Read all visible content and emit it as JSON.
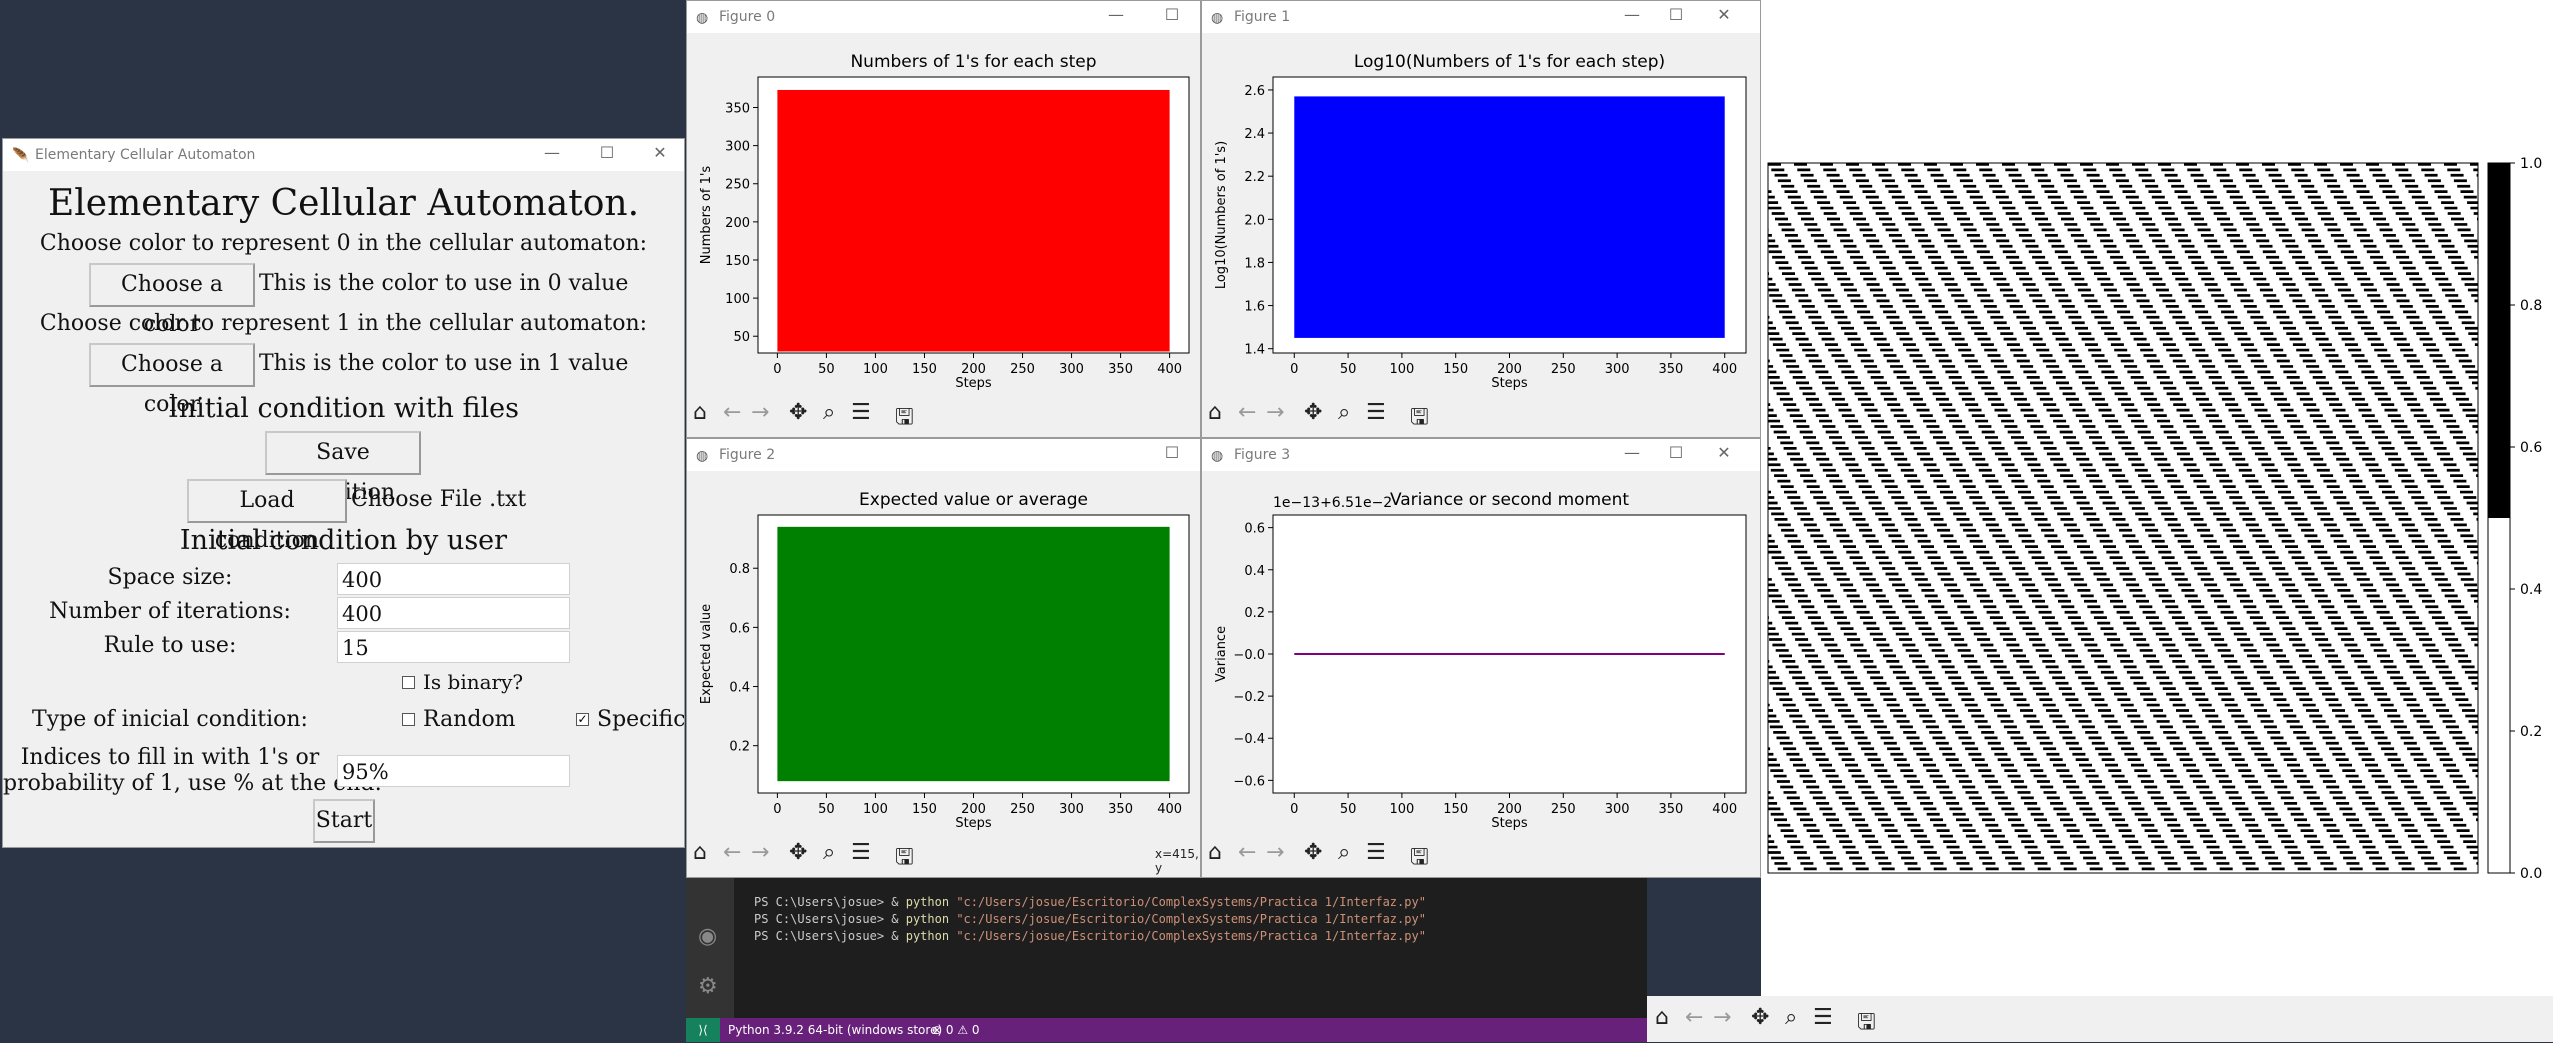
{
  "main_app": {
    "window_title": "Elementary Cellular Automaton",
    "heading": "Elementary Cellular Automaton.",
    "color0_prompt": "Choose color to represent 0 in the cellular automaton:",
    "color0_button": "Choose a color",
    "color0_label": "This is the color to use in 0 value",
    "color1_prompt": "Choose color to represent 1 in the cellular automaton:",
    "color1_button": "Choose a color",
    "color1_label": "This is the color to use in 1 value",
    "files_heading": "Initial condition with files",
    "save_button": "Save condition",
    "load_button": "Load condition",
    "choose_file_label": "Choose File .txt",
    "user_heading": "Initial condition by user",
    "space_size_label": "Space size:",
    "space_size_value": "400",
    "iterations_label": "Number of iterations:",
    "iterations_value": "400",
    "rule_label": "Rule to use:",
    "rule_value": "15",
    "is_binary_label": "Is binary?",
    "is_binary_checked": false,
    "type_label": "Type of inicial condition:",
    "random_label": "Random",
    "random_checked": false,
    "specific_label": "Specific",
    "specific_checked": true,
    "indices_label_1": "Indices to fill in with 1's or",
    "indices_label_2": "probability of 1, use % at the end:",
    "indices_value": "95%",
    "start_button": "Start"
  },
  "figures": [
    {
      "window_title": "Figure 0",
      "title": "Numbers of 1's for each step",
      "xlabel": "Steps",
      "ylabel": "Numbers of 1's",
      "color": "#ff0000",
      "xticks": [
        "0",
        "50",
        "100",
        "150",
        "200",
        "250",
        "300",
        "350",
        "400"
      ],
      "yticks": [
        "50",
        "100",
        "150",
        "200",
        "250",
        "300",
        "350"
      ]
    },
    {
      "window_title": "Figure 1",
      "title": "Log10(Numbers of 1's for each step)",
      "xlabel": "Steps",
      "ylabel": "Log10(Numbers of 1's)",
      "color": "#0000ff",
      "xticks": [
        "0",
        "50",
        "100",
        "150",
        "200",
        "250",
        "300",
        "350",
        "400"
      ],
      "yticks": [
        "1.4",
        "1.6",
        "1.8",
        "2.0",
        "2.2",
        "2.4",
        "2.6"
      ]
    },
    {
      "window_title": "Figure 2",
      "title": "Expected value or average",
      "xlabel": "Steps",
      "ylabel": "Expected value",
      "color": "#008000",
      "xticks": [
        "0",
        "50",
        "100",
        "150",
        "200",
        "250",
        "300",
        "350",
        "400"
      ],
      "yticks": [
        "0.2",
        "0.4",
        "0.6",
        "0.8"
      ],
      "coord_readout": "x=415, y"
    },
    {
      "window_title": "Figure 3",
      "title": "Variance or second moment",
      "xlabel": "Steps",
      "ylabel": "Variance",
      "color": "#800080",
      "offset_text": "1e−13+6.51e−2",
      "xticks": [
        "0",
        "50",
        "100",
        "150",
        "200",
        "250",
        "300",
        "350",
        "400"
      ],
      "yticks": [
        "−0.6",
        "−0.4",
        "−0.2",
        "−0.0",
        "0.2",
        "0.4",
        "0.6"
      ]
    }
  ],
  "chart_data": [
    {
      "type": "bar",
      "title": "Numbers of 1's for each step",
      "xlabel": "Steps",
      "ylabel": "Numbers of 1's",
      "x_range": [
        0,
        400
      ],
      "ylim": [
        28,
        390
      ],
      "bar_top": 373,
      "bar_bottom": 30,
      "bar_x_range": [
        0,
        400
      ]
    },
    {
      "type": "bar",
      "title": "Log10(Numbers of 1's for each step)",
      "xlabel": "Steps",
      "ylabel": "Log10(Numbers of 1's)",
      "x_range": [
        0,
        400
      ],
      "ylim": [
        1.38,
        2.66
      ],
      "bar_top": 2.57,
      "bar_bottom": 1.45,
      "bar_x_range": [
        0,
        400
      ]
    },
    {
      "type": "bar",
      "title": "Expected value or average",
      "xlabel": "Steps",
      "ylabel": "Expected value",
      "x_range": [
        0,
        400
      ],
      "ylim": [
        0.04,
        0.98
      ],
      "bar_top": 0.94,
      "bar_bottom": 0.08,
      "bar_x_range": [
        0,
        400
      ]
    },
    {
      "type": "line",
      "title": "Variance or second moment",
      "xlabel": "Steps",
      "ylabel": "Variance",
      "x_range": [
        0,
        400
      ],
      "ylim": [
        -0.66,
        0.66
      ],
      "x": [
        0,
        400
      ],
      "y": [
        0,
        0
      ]
    }
  ],
  "automaton_colorbar": {
    "ticks": [
      "0.0",
      "0.2",
      "0.4",
      "0.6",
      "0.8",
      "1.0"
    ],
    "split_value": 0.5
  },
  "terminal": {
    "prompt": "PS C:\\Users\\josue> &",
    "command": "python",
    "path": "\"c:/Users/josue/Escritorio/ComplexSystems/Practica 1/Interfaz.py\"",
    "line_count": 3
  },
  "status_bar": {
    "python_version": "Python 3.9.2 64-bit (windows store)",
    "problems": "⊗ 0 ⚠ 0"
  }
}
